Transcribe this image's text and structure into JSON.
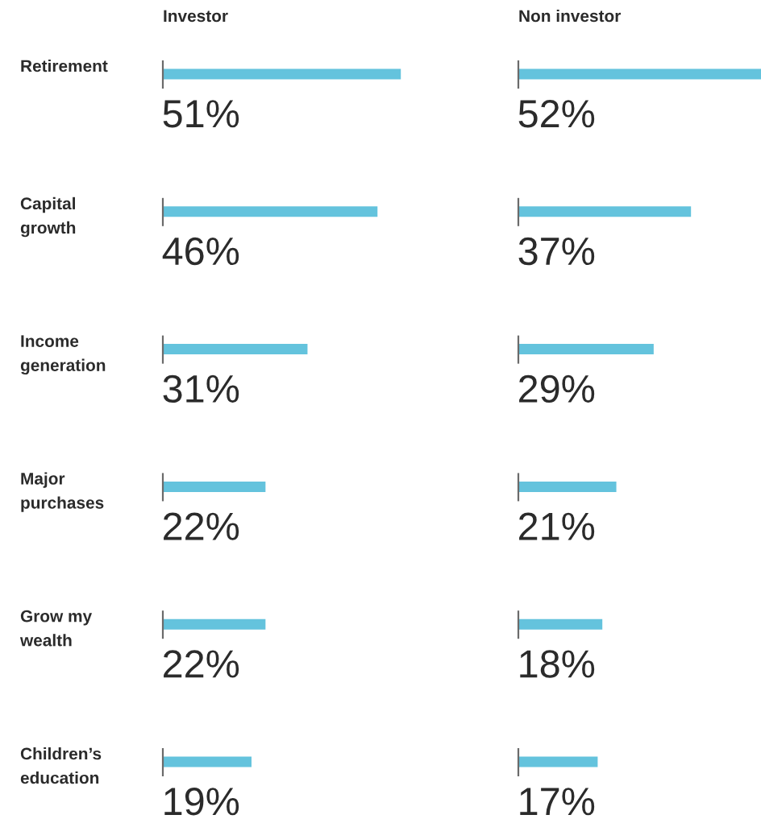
{
  "chart_data": [
    {
      "type": "bar",
      "orientation": "horizontal",
      "title": "Investor",
      "categories": [
        "Retirement",
        "Capital\ngrowth",
        "Income\ngeneration",
        "Major\npurchases",
        "Grow my\nwealth",
        "Children’s\neducation"
      ],
      "values": [
        51,
        46,
        31,
        22,
        22,
        19
      ],
      "color": "#64c3dd",
      "value_labels": [
        "51%",
        "46%",
        "31%",
        "22%",
        "22%",
        "19%"
      ],
      "tick_labels": "y"
    },
    {
      "type": "bar",
      "orientation": "horizontal",
      "title": "Non investor",
      "categories": [
        null,
        null,
        null,
        null,
        null,
        null
      ],
      "values": [
        52,
        37,
        29,
        21,
        18,
        17
      ],
      "color": "#64c3dd",
      "value_labels": [
        "52%",
        "37%",
        "29%",
        "21%",
        "18%",
        "17%"
      ],
      "tick_labels": false
    }
  ]
}
